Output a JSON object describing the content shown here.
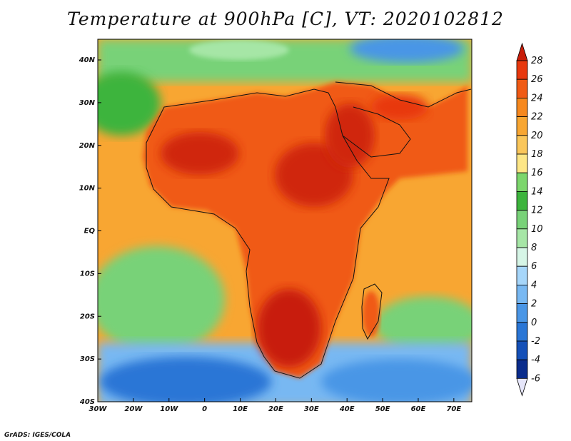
{
  "title": "Temperature at 900hPa [C], VT: 2020102812",
  "credit": "GrADS: IGES/COLA",
  "map": {
    "lon_range": [
      -30,
      75
    ],
    "lat_range": [
      -40,
      45
    ],
    "lon_ticks": [
      "30W",
      "20W",
      "10W",
      "0",
      "10E",
      "20E",
      "30E",
      "40E",
      "50E",
      "60E",
      "70E"
    ],
    "lat_ticks": [
      "40N",
      "30N",
      "20N",
      "10N",
      "EQ",
      "10S",
      "20S",
      "30S",
      "40S"
    ]
  },
  "colorbar": {
    "levels": [
      "28",
      "26",
      "24",
      "22",
      "20",
      "18",
      "16",
      "14",
      "12",
      "10",
      "8",
      "6",
      "4",
      "2",
      "0",
      "-2",
      "-4",
      "-6"
    ],
    "colors": [
      "#c81e0a",
      "#e8380e",
      "#f05a14",
      "#f6881e",
      "#f8a632",
      "#fac65a",
      "#fde686",
      "#7cd66c",
      "#3cb43c",
      "#78d278",
      "#a6e6a6",
      "#d6f5e6",
      "#a6d6fa",
      "#78b8f2",
      "#4a96e6",
      "#2a76d6",
      "#1450b8",
      "#0a2c8c",
      "#0a1462"
    ],
    "colors_note_top": "#c81e0a",
    "colors_note_bottom": "#e6e6fa"
  },
  "field_colors": {
    "hot": "#d0260c",
    "warm": "#f58a1e",
    "mild": "#fbc05a",
    "cool": "#3cb43c",
    "cold": "#3a8ae0"
  }
}
